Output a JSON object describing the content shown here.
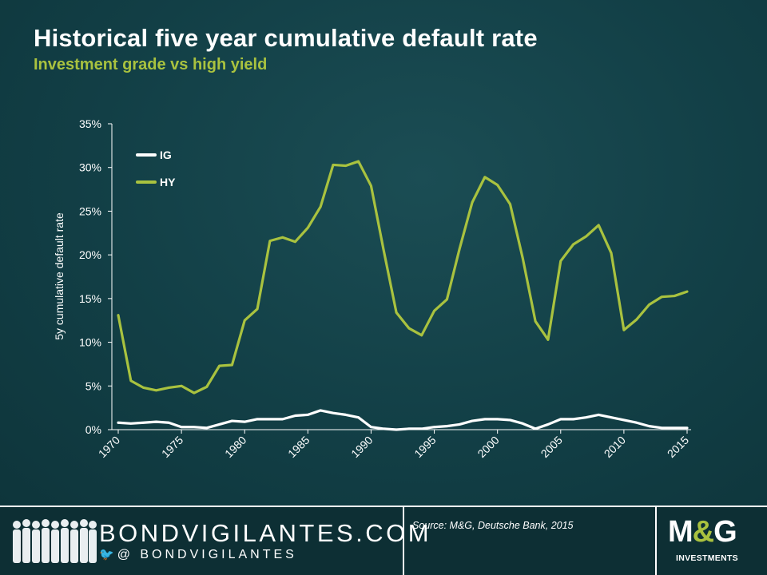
{
  "header": {
    "title": "Historical five year cumulative default rate",
    "subtitle": "Investment grade vs high yield"
  },
  "chart_data": {
    "type": "line",
    "title": "Historical five year cumulative default rate",
    "subtitle": "Investment grade vs high yield",
    "xlabel": "",
    "ylabel": "5y cumulative default rate",
    "xlim": [
      1970,
      2015
    ],
    "ylim": [
      0,
      35
    ],
    "xticks": [
      "1970",
      "1975",
      "1980",
      "1985",
      "1990",
      "1995",
      "2000",
      "2005",
      "2010",
      "2015"
    ],
    "yticks": [
      "0%",
      "5%",
      "10%",
      "15%",
      "20%",
      "25%",
      "30%",
      "35%"
    ],
    "legend_position": "top-left",
    "grid": false,
    "x": [
      1970,
      1971,
      1972,
      1973,
      1974,
      1975,
      1976,
      1977,
      1978,
      1979,
      1980,
      1981,
      1982,
      1983,
      1984,
      1985,
      1986,
      1987,
      1988,
      1989,
      1990,
      1991,
      1992,
      1993,
      1994,
      1995,
      1996,
      1997,
      1998,
      1999,
      2000,
      2001,
      2002,
      2003,
      2004,
      2005,
      2006,
      2007,
      2008,
      2009,
      2010,
      2011,
      2012,
      2013,
      2014,
      2015
    ],
    "series": [
      {
        "name": "IG",
        "color": "#ffffff",
        "values": [
          0.8,
          0.7,
          0.8,
          0.9,
          0.8,
          0.3,
          0.3,
          0.2,
          0.6,
          1.0,
          0.9,
          1.2,
          1.2,
          1.2,
          1.6,
          1.7,
          2.2,
          1.9,
          1.7,
          1.4,
          0.3,
          0.1,
          0.0,
          0.1,
          0.1,
          0.3,
          0.4,
          0.6,
          1.0,
          1.2,
          1.2,
          1.1,
          0.7,
          0.1,
          0.6,
          1.2,
          1.2,
          1.4,
          1.7,
          1.4,
          1.1,
          0.8,
          0.4,
          0.2,
          0.2,
          0.2
        ]
      },
      {
        "name": "HY",
        "color": "#a9c23f",
        "values": [
          13.1,
          5.6,
          4.8,
          4.5,
          4.8,
          5.0,
          4.2,
          4.9,
          7.3,
          7.4,
          12.5,
          13.8,
          21.6,
          22.0,
          21.5,
          23.1,
          25.5,
          30.3,
          30.2,
          30.7,
          27.9,
          20.5,
          13.4,
          11.6,
          10.8,
          13.6,
          14.9,
          20.7,
          26.0,
          28.9,
          28.0,
          25.8,
          19.6,
          12.4,
          10.3,
          19.3,
          21.2,
          22.1,
          23.4,
          20.2,
          11.4,
          12.6,
          14.3,
          15.2,
          15.3,
          15.8
        ]
      }
    ]
  },
  "footer": {
    "brand": "BONDVIGILANTES.COM",
    "handle": "@ BONDVIGILANTES",
    "source": "Source: M&G, Deutsche Bank, 2015",
    "logo_m": "M",
    "logo_amp": "&",
    "logo_g": "G",
    "logo_sub": "INVESTMENTS"
  },
  "colors": {
    "background": "#123f46",
    "accent": "#a9c23f",
    "footer": "#0d2f34"
  }
}
